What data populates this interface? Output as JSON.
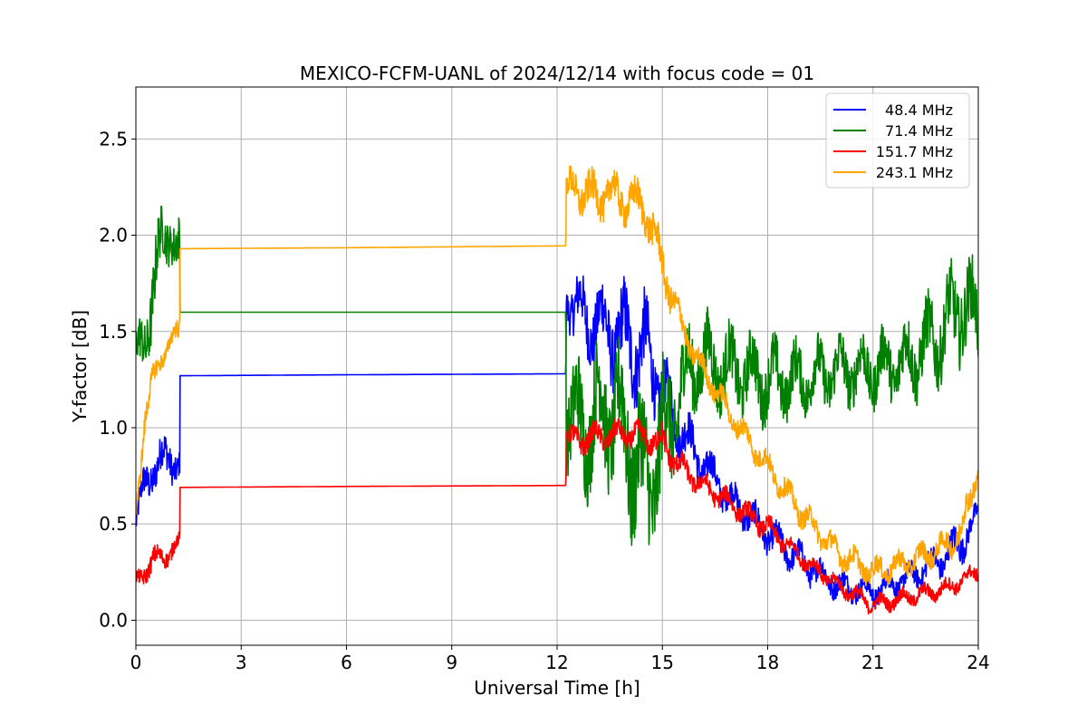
{
  "chart_data": {
    "type": "line",
    "title": "MEXICO-FCFM-UANL of 2024/12/14 with focus code = 01",
    "xlabel": "Universal Time [h]",
    "ylabel": "Y-factor [dB]",
    "xlim": [
      0,
      24
    ],
    "ylim": [
      -0.13,
      2.77
    ],
    "xticks": [
      0,
      3,
      6,
      9,
      12,
      15,
      18,
      21,
      24
    ],
    "yticks": [
      0.0,
      0.5,
      1.0,
      1.5,
      2.0,
      2.5
    ],
    "grid": true,
    "legend_position": "top-right",
    "series": [
      {
        "name": "48.4 MHz",
        "color": "#0000ff",
        "x": [
          0,
          0.25,
          0.5,
          0.75,
          1.0,
          1.25,
          1.26,
          6,
          12.25,
          12.26,
          12.5,
          13,
          13.5,
          14,
          14.5,
          15,
          15.5,
          16,
          17,
          18,
          19,
          20,
          21,
          22,
          23,
          23.5,
          24
        ],
        "y": [
          0.5,
          0.7,
          0.8,
          0.82,
          0.84,
          0.82,
          1.27,
          1.275,
          1.28,
          1.7,
          1.62,
          1.55,
          1.5,
          1.45,
          1.4,
          1.2,
          1.0,
          0.85,
          0.62,
          0.45,
          0.3,
          0.18,
          0.15,
          0.22,
          0.32,
          0.4,
          0.55
        ],
        "spread": [
          0.15,
          0.2,
          0.2,
          0.22,
          0.2,
          0.15,
          0,
          0,
          0,
          0.2,
          0.3,
          0.35,
          0.4,
          0.45,
          0.45,
          0.3,
          0.25,
          0.2,
          0.15,
          0.15,
          0.15,
          0.12,
          0.12,
          0.12,
          0.15,
          0.18,
          0.1
        ]
      },
      {
        "name": "71.4 MHz",
        "color": "#008000",
        "x": [
          0,
          0.25,
          0.5,
          0.75,
          1.0,
          1.25,
          1.26,
          6,
          12.25,
          12.26,
          12.5,
          13,
          13.5,
          14,
          14.5,
          15,
          15.5,
          16,
          17,
          18,
          19,
          20,
          21,
          22,
          23,
          23.5,
          24
        ],
        "y": [
          1.35,
          1.45,
          1.75,
          1.95,
          2.05,
          1.9,
          1.6,
          1.6,
          1.6,
          1.1,
          1.0,
          1.05,
          1.1,
          0.95,
          0.7,
          0.9,
          1.2,
          1.35,
          1.3,
          1.25,
          1.25,
          1.3,
          1.3,
          1.35,
          1.5,
          1.65,
          1.55
        ],
        "spread": [
          0.25,
          0.3,
          0.4,
          0.3,
          0.25,
          0.3,
          0,
          0,
          0,
          0.45,
          0.55,
          0.6,
          0.6,
          0.7,
          0.7,
          0.7,
          0.5,
          0.4,
          0.35,
          0.35,
          0.3,
          0.3,
          0.3,
          0.35,
          0.4,
          0.45,
          0.4
        ]
      },
      {
        "name": "151.7 MHz",
        "color": "#ff0000",
        "x": [
          0,
          0.25,
          0.5,
          0.75,
          1.0,
          1.25,
          1.26,
          6,
          12.25,
          12.26,
          12.5,
          13,
          13.5,
          14,
          14.5,
          15,
          15.5,
          16,
          17,
          18,
          19,
          20,
          21,
          22,
          23,
          23.5,
          24
        ],
        "y": [
          0.2,
          0.26,
          0.3,
          0.33,
          0.36,
          0.4,
          0.69,
          0.695,
          0.7,
          0.95,
          0.93,
          0.95,
          0.96,
          0.97,
          0.95,
          0.92,
          0.8,
          0.72,
          0.6,
          0.48,
          0.32,
          0.18,
          0.08,
          0.12,
          0.16,
          0.2,
          0.26
        ],
        "spread": [
          0.08,
          0.1,
          0.12,
          0.1,
          0.1,
          0.08,
          0,
          0,
          0,
          0.12,
          0.12,
          0.12,
          0.12,
          0.12,
          0.12,
          0.15,
          0.12,
          0.1,
          0.1,
          0.1,
          0.08,
          0.08,
          0.08,
          0.08,
          0.08,
          0.08,
          0.08
        ]
      },
      {
        "name": "243.1 MHz",
        "color": "#ffa500",
        "x": [
          0,
          0.25,
          0.5,
          0.75,
          1.0,
          1.25,
          1.26,
          6,
          12.25,
          12.26,
          12.5,
          13,
          13.5,
          14,
          14.5,
          15,
          15.5,
          16,
          17,
          18,
          19,
          20,
          21,
          22,
          23,
          23.5,
          24
        ],
        "y": [
          0.55,
          1.05,
          1.25,
          1.38,
          1.45,
          1.5,
          1.93,
          1.935,
          1.945,
          2.22,
          2.25,
          2.2,
          2.22,
          2.18,
          2.15,
          1.85,
          1.55,
          1.35,
          1.05,
          0.8,
          0.55,
          0.35,
          0.25,
          0.3,
          0.38,
          0.45,
          0.8
        ],
        "spread": [
          0.1,
          0.15,
          0.12,
          0.1,
          0.1,
          0.12,
          0,
          0,
          0,
          0.15,
          0.2,
          0.2,
          0.2,
          0.2,
          0.2,
          0.2,
          0.15,
          0.12,
          0.12,
          0.12,
          0.12,
          0.12,
          0.12,
          0.12,
          0.12,
          0.15,
          0.15
        ]
      }
    ]
  }
}
